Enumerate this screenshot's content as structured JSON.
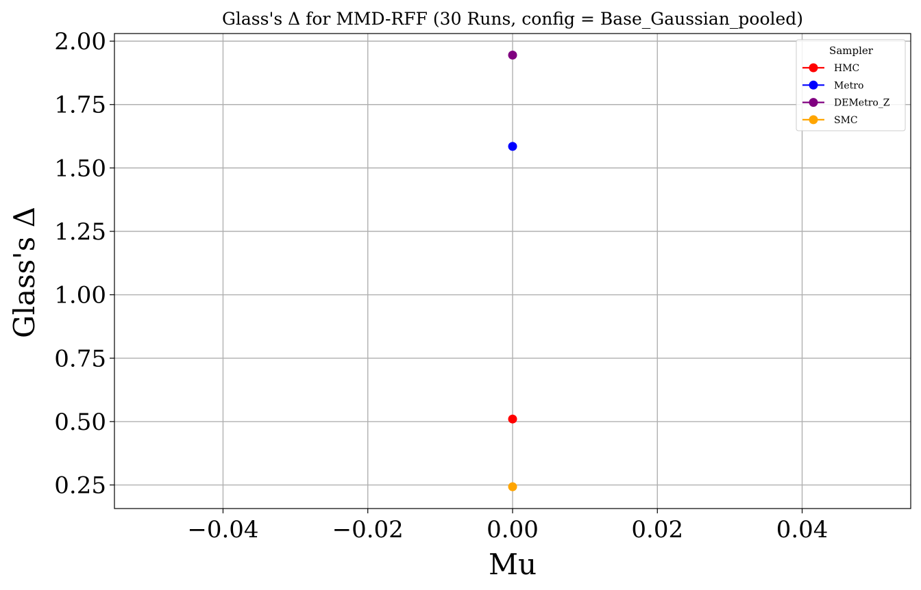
{
  "chart_data": {
    "type": "scatter",
    "title": "Glass's Δ for MMD-RFF (30 Runs, config = Base_Gaussian_pooled)",
    "xlabel": "Mu",
    "ylabel": "Glass's Δ",
    "xlim": [
      -0.055,
      0.055
    ],
    "ylim": [
      0.157,
      2.03
    ],
    "xticks": [
      -0.04,
      -0.02,
      0.0,
      0.02,
      0.04
    ],
    "xtick_labels": [
      "−0.04",
      "−0.02",
      "0.00",
      "0.02",
      "0.04"
    ],
    "yticks": [
      0.25,
      0.5,
      0.75,
      1.0,
      1.25,
      1.5,
      1.75,
      2.0
    ],
    "ytick_labels": [
      "0.25",
      "0.50",
      "0.75",
      "1.00",
      "1.25",
      "1.50",
      "1.75",
      "2.00"
    ],
    "grid": true,
    "legend": {
      "title": "Sampler",
      "placement": "top-right"
    },
    "series": [
      {
        "name": "HMC",
        "color": "#ff0000",
        "x": [
          0.0
        ],
        "y": [
          0.51
        ]
      },
      {
        "name": "Metro",
        "color": "#0000ff",
        "x": [
          0.0
        ],
        "y": [
          1.585
        ]
      },
      {
        "name": "DEMetro_Z",
        "color": "#800080",
        "x": [
          0.0
        ],
        "y": [
          1.945
        ]
      },
      {
        "name": "SMC",
        "color": "#ffa500",
        "x": [
          0.0
        ],
        "y": [
          0.243
        ]
      }
    ]
  }
}
